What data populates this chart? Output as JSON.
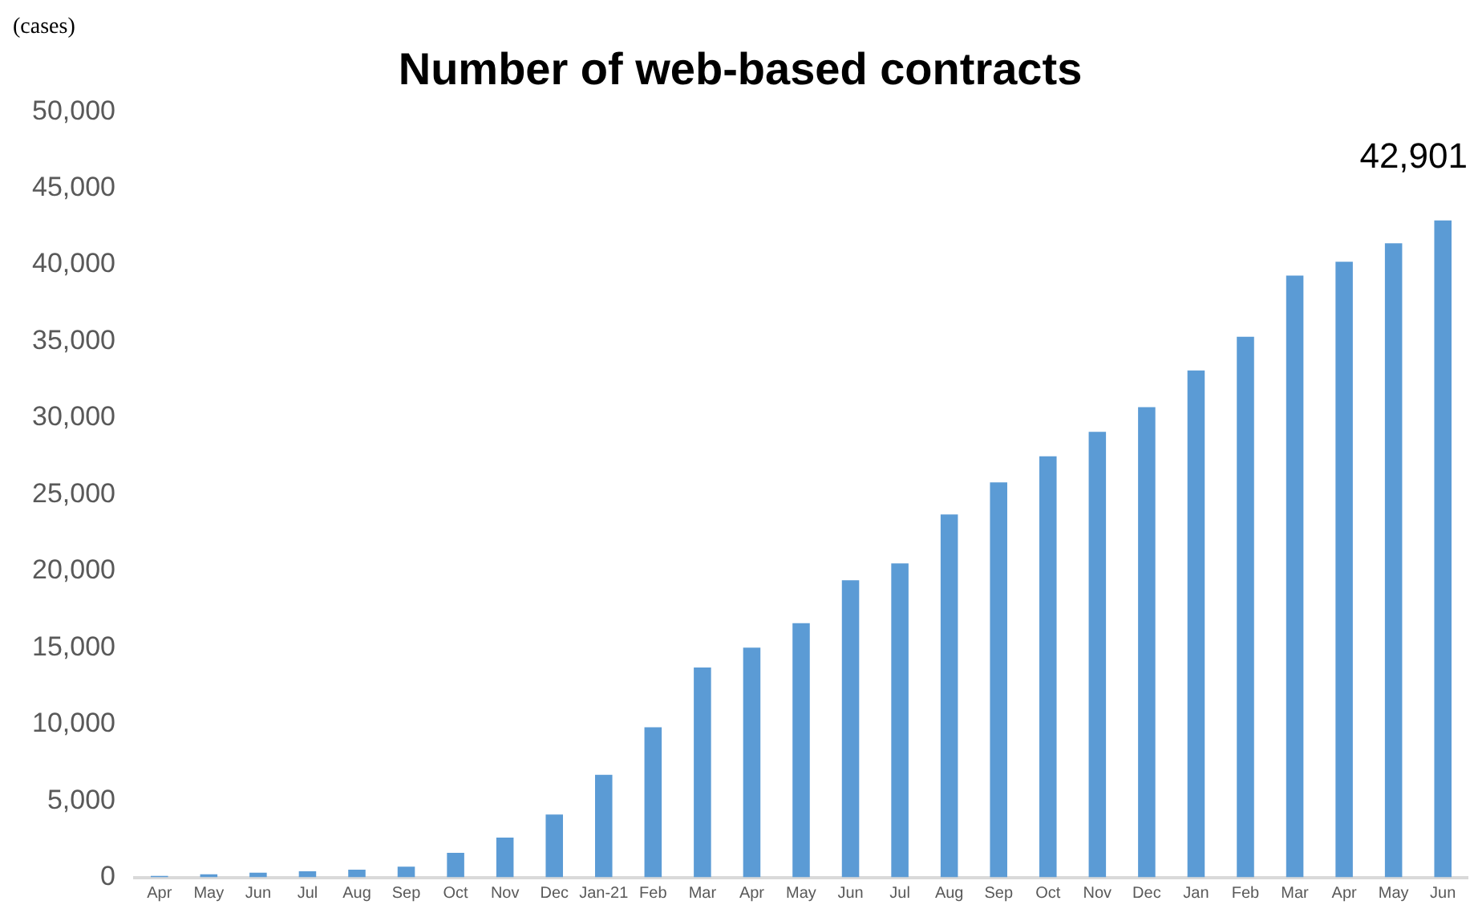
{
  "chart_data": {
    "type": "bar",
    "title": "Number of web-based contracts",
    "ylabel": "(cases)",
    "categories": [
      "Apr",
      "May",
      "Jun",
      "Jul",
      "Aug",
      "Sep",
      "Oct",
      "Nov",
      "Dec",
      "Jan-21",
      "Feb",
      "Mar",
      "Apr",
      "May",
      "Jun",
      "Jul",
      "Aug",
      "Sep",
      "Oct",
      "Nov",
      "Dec",
      "Jan",
      "Feb",
      "Mar",
      "Apr",
      "May",
      "Jun"
    ],
    "values": [
      100,
      200,
      300,
      400,
      500,
      700,
      1600,
      2600,
      4100,
      6700,
      9800,
      13700,
      15000,
      16600,
      19400,
      20500,
      23700,
      25800,
      27500,
      29100,
      30700,
      33100,
      35300,
      39300,
      40200,
      41400,
      42901
    ],
    "value_labels": [
      null,
      null,
      null,
      null,
      null,
      null,
      null,
      null,
      null,
      null,
      null,
      null,
      null,
      null,
      null,
      null,
      null,
      null,
      null,
      null,
      null,
      null,
      null,
      null,
      null,
      null,
      "42,901"
    ],
    "color": "#5b9bd5",
    "ylim": [
      0,
      50000
    ],
    "yticks": [
      0,
      {
        "value": 5000,
        "label": "5,000"
      },
      {
        "value": 10000,
        "label": "10,000"
      },
      {
        "value": 15000,
        "label": "15,000"
      },
      {
        "value": 20000,
        "label": "20,000"
      },
      {
        "value": 25000,
        "label": "25,000"
      },
      {
        "value": 30000,
        "label": "30,000"
      },
      {
        "value": 35000,
        "label": "35,000"
      },
      {
        "value": 40000,
        "label": "40,000"
      },
      {
        "value": 45000,
        "label": "45,000"
      },
      {
        "value": 50000,
        "label": "50,000"
      }
    ],
    "grid": false,
    "legend": false
  }
}
